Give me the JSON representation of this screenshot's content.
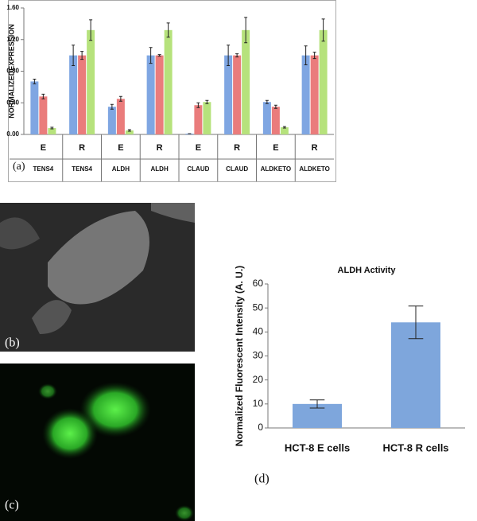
{
  "chart_data": [
    {
      "type": "bar",
      "panel_label": "(a)",
      "y_label": "NORMALIZEDEXPRESSION",
      "categories": [
        "E",
        "R",
        "E",
        "R",
        "E",
        "R",
        "E",
        "R"
      ],
      "category_sublabels": [
        "TENS4",
        "TENS4",
        "ALDH",
        "ALDH",
        "CLAUD",
        "CLAUD",
        "ALDKETO",
        "ALDKETO"
      ],
      "series": [
        {
          "color": "#7fa6e2",
          "values": [
            0.67,
            1.0,
            0.35,
            1.0,
            0.01,
            1.0,
            0.41,
            1.0
          ],
          "errors": [
            0.03,
            0.13,
            0.03,
            0.1,
            0.0,
            0.13,
            0.02,
            0.12
          ]
        },
        {
          "color": "#ea7c7c",
          "values": [
            0.48,
            1.0,
            0.45,
            1.0,
            0.37,
            1.0,
            0.35,
            1.0
          ],
          "errors": [
            0.03,
            0.05,
            0.03,
            0.01,
            0.03,
            0.02,
            0.02,
            0.04
          ]
        },
        {
          "color": "#b6e27c",
          "values": [
            0.08,
            1.32,
            0.05,
            1.32,
            0.41,
            1.32,
            0.09,
            1.32
          ],
          "errors": [
            0.01,
            0.13,
            0.01,
            0.09,
            0.02,
            0.16,
            0.01,
            0.14
          ]
        }
      ],
      "ylim": [
        0,
        1.6
      ],
      "yticks": [
        {
          "value": 0,
          "label": "0.00"
        },
        {
          "value": 0.4,
          "label": "0.40"
        },
        {
          "value": 0.8,
          "label": "0.80"
        },
        {
          "value": 1.2,
          "label": "1.20"
        },
        {
          "value": 1.6,
          "label": "1.60"
        }
      ]
    },
    {
      "type": "bar",
      "panel_label": "(d)",
      "title": "ALDH Activity",
      "y_label": "Normalized Fluorescent Intensity (A. U.)",
      "categories": [
        "HCT-8 E cells",
        "HCT-8 R cells"
      ],
      "values": [
        10,
        44
      ],
      "errors": [
        1.7,
        6.8
      ],
      "color": "#7ea6dc",
      "ylim": [
        0,
        60
      ],
      "yticks": [
        0,
        10,
        20,
        30,
        40,
        50,
        60
      ]
    }
  ],
  "images": [
    {
      "label": "(b)"
    },
    {
      "label": "(c)"
    }
  ]
}
